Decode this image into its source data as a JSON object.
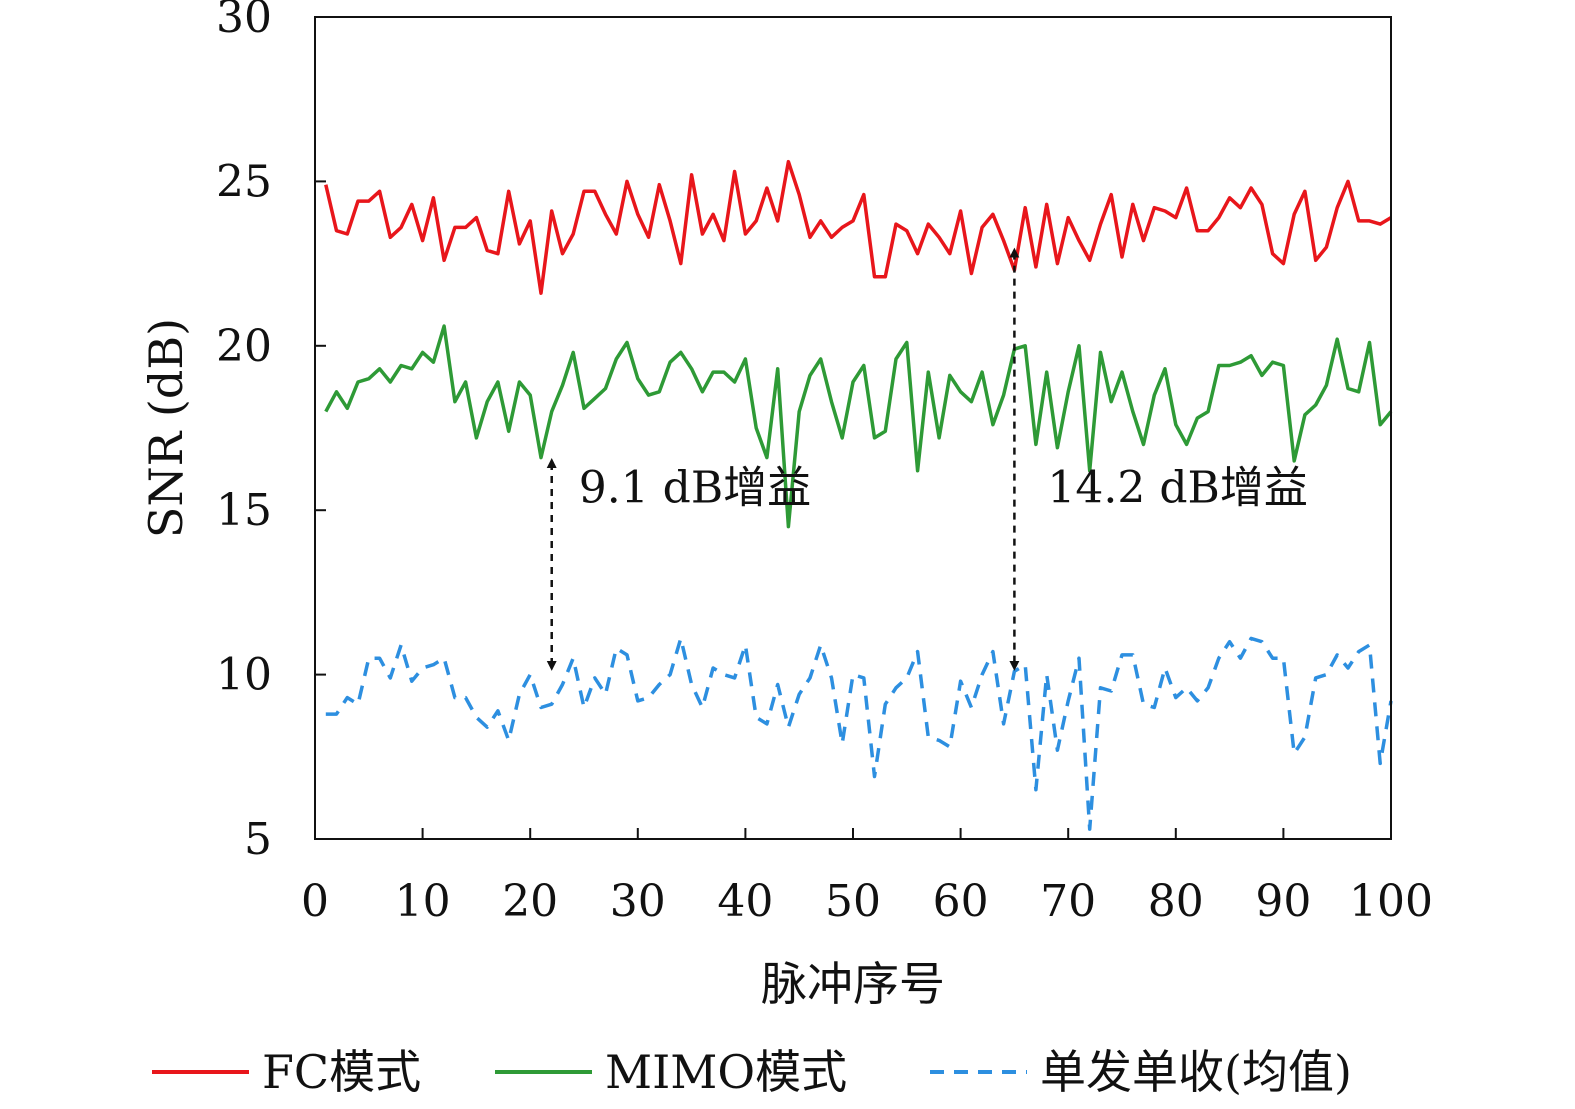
{
  "chart_data": {
    "type": "line",
    "title": "",
    "xlabel": "脉冲序号",
    "ylabel": "SNR (dB)",
    "xlim": [
      0,
      100
    ],
    "ylim": [
      5,
      30
    ],
    "xticks": [
      0,
      10,
      20,
      30,
      40,
      50,
      60,
      70,
      80,
      90,
      100
    ],
    "yticks": [
      5,
      10,
      15,
      20,
      25,
      30
    ],
    "xtick_labels": [
      "0",
      "10",
      "20",
      "30",
      "40",
      "50",
      "60",
      "70",
      "80",
      "90",
      "100"
    ],
    "ytick_labels": [
      "5",
      "10",
      "15",
      "20",
      "25",
      "30"
    ],
    "grid": false,
    "legend_position": "bottom",
    "x": [
      1,
      2,
      3,
      4,
      5,
      6,
      7,
      8,
      9,
      10,
      11,
      12,
      13,
      14,
      15,
      16,
      17,
      18,
      19,
      20,
      21,
      22,
      23,
      24,
      25,
      26,
      27,
      28,
      29,
      30,
      31,
      32,
      33,
      34,
      35,
      36,
      37,
      38,
      39,
      40,
      41,
      42,
      43,
      44,
      45,
      46,
      47,
      48,
      49,
      50,
      51,
      52,
      53,
      54,
      55,
      56,
      57,
      58,
      59,
      60,
      61,
      62,
      63,
      64,
      65,
      66,
      67,
      68,
      69,
      70,
      71,
      72,
      73,
      74,
      75,
      76,
      77,
      78,
      79,
      80,
      81,
      82,
      83,
      84,
      85,
      86,
      87,
      88,
      89,
      90,
      91,
      92,
      93,
      94,
      95,
      96,
      97,
      98,
      99,
      100
    ],
    "series": [
      {
        "name": "FC模式",
        "color": "#e8161b",
        "style": "solid",
        "values": [
          24.9,
          23.5,
          23.4,
          24.4,
          24.4,
          24.7,
          23.3,
          23.6,
          24.3,
          23.2,
          24.5,
          22.6,
          23.6,
          23.6,
          23.9,
          22.9,
          22.8,
          24.7,
          23.1,
          23.8,
          21.6,
          24.1,
          22.8,
          23.4,
          24.7,
          24.7,
          24.0,
          23.4,
          25.0,
          24.0,
          23.3,
          24.9,
          23.8,
          22.5,
          25.2,
          23.4,
          24.0,
          23.2,
          25.3,
          23.4,
          23.8,
          24.8,
          23.8,
          25.6,
          24.6,
          23.3,
          23.8,
          23.3,
          23.6,
          23.8,
          24.6,
          22.1,
          22.1,
          23.7,
          23.5,
          22.8,
          23.7,
          23.3,
          22.8,
          24.1,
          22.2,
          23.6,
          24.0,
          23.2,
          22.3,
          24.2,
          22.4,
          24.3,
          22.5,
          23.9,
          23.2,
          22.6,
          23.7,
          24.6,
          22.7,
          24.3,
          23.2,
          24.2,
          24.1,
          23.9,
          24.8,
          23.5,
          23.5,
          23.9,
          24.5,
          24.2,
          24.8,
          24.3,
          22.8,
          22.5,
          24.0,
          24.7,
          22.6,
          23.0,
          24.2,
          25.0,
          23.8,
          23.8,
          23.7,
          23.9
        ]
      },
      {
        "name": "MIMO模式",
        "color": "#2e9a36",
        "style": "solid",
        "values": [
          18.0,
          18.6,
          18.1,
          18.9,
          19.0,
          19.3,
          18.9,
          19.4,
          19.3,
          19.8,
          19.5,
          20.6,
          18.3,
          18.9,
          17.2,
          18.3,
          18.9,
          17.4,
          18.9,
          18.5,
          16.6,
          18.0,
          18.8,
          19.8,
          18.1,
          18.4,
          18.7,
          19.6,
          20.1,
          19.0,
          18.5,
          18.6,
          19.5,
          19.8,
          19.3,
          18.6,
          19.2,
          19.2,
          18.9,
          19.6,
          17.5,
          16.6,
          19.3,
          14.5,
          18.0,
          19.1,
          19.6,
          18.3,
          17.2,
          18.9,
          19.4,
          17.2,
          17.4,
          19.6,
          20.1,
          16.2,
          19.2,
          17.2,
          19.1,
          18.6,
          18.3,
          19.2,
          17.6,
          18.5,
          19.9,
          20.0,
          17.0,
          19.2,
          16.9,
          18.6,
          20.0,
          16.2,
          19.8,
          18.3,
          19.2,
          18.0,
          17.0,
          18.5,
          19.3,
          17.6,
          17.0,
          17.8,
          18.0,
          19.4,
          19.4,
          19.5,
          19.7,
          19.1,
          19.5,
          19.4,
          16.5,
          17.9,
          18.2,
          18.8,
          20.2,
          18.7,
          18.6,
          20.1,
          17.6,
          18.0
        ]
      },
      {
        "name": "单发单收(均值)",
        "color": "#2d8fe0",
        "style": "dashed",
        "values": [
          8.8,
          8.8,
          9.3,
          9.1,
          10.5,
          10.5,
          9.9,
          10.9,
          9.8,
          10.2,
          10.3,
          10.5,
          9.3,
          9.3,
          8.7,
          8.4,
          8.9,
          8.0,
          9.4,
          10.0,
          9.0,
          9.1,
          9.7,
          10.5,
          9.0,
          9.9,
          9.4,
          10.8,
          10.6,
          9.2,
          9.3,
          9.7,
          10.0,
          11.1,
          9.7,
          9.0,
          10.2,
          10.0,
          9.9,
          10.9,
          8.7,
          8.5,
          9.7,
          8.4,
          9.4,
          9.9,
          10.9,
          9.9,
          7.9,
          10.0,
          9.9,
          6.9,
          9.1,
          9.6,
          9.9,
          10.7,
          8.1,
          8.0,
          7.8,
          9.8,
          9.0,
          10.0,
          10.7,
          8.5,
          10.1,
          10.3,
          6.5,
          10.0,
          7.7,
          9.2,
          10.5,
          5.3,
          9.6,
          9.5,
          10.6,
          10.6,
          9.1,
          9.0,
          10.2,
          9.3,
          9.6,
          9.2,
          9.6,
          10.5,
          11.0,
          10.5,
          11.1,
          11.0,
          10.5,
          10.5,
          7.6,
          8.1,
          9.9,
          10.0,
          10.6,
          10.2,
          10.7,
          10.9,
          7.3,
          9.2
        ]
      }
    ],
    "annotations": [
      {
        "text": "9.1 dB增益",
        "x": 22,
        "y_top": 16.8,
        "y_bottom": 9.9
      },
      {
        "text": "14.2 dB增益",
        "x": 65,
        "y_top": 23.2,
        "y_bottom": 9.9
      }
    ]
  }
}
